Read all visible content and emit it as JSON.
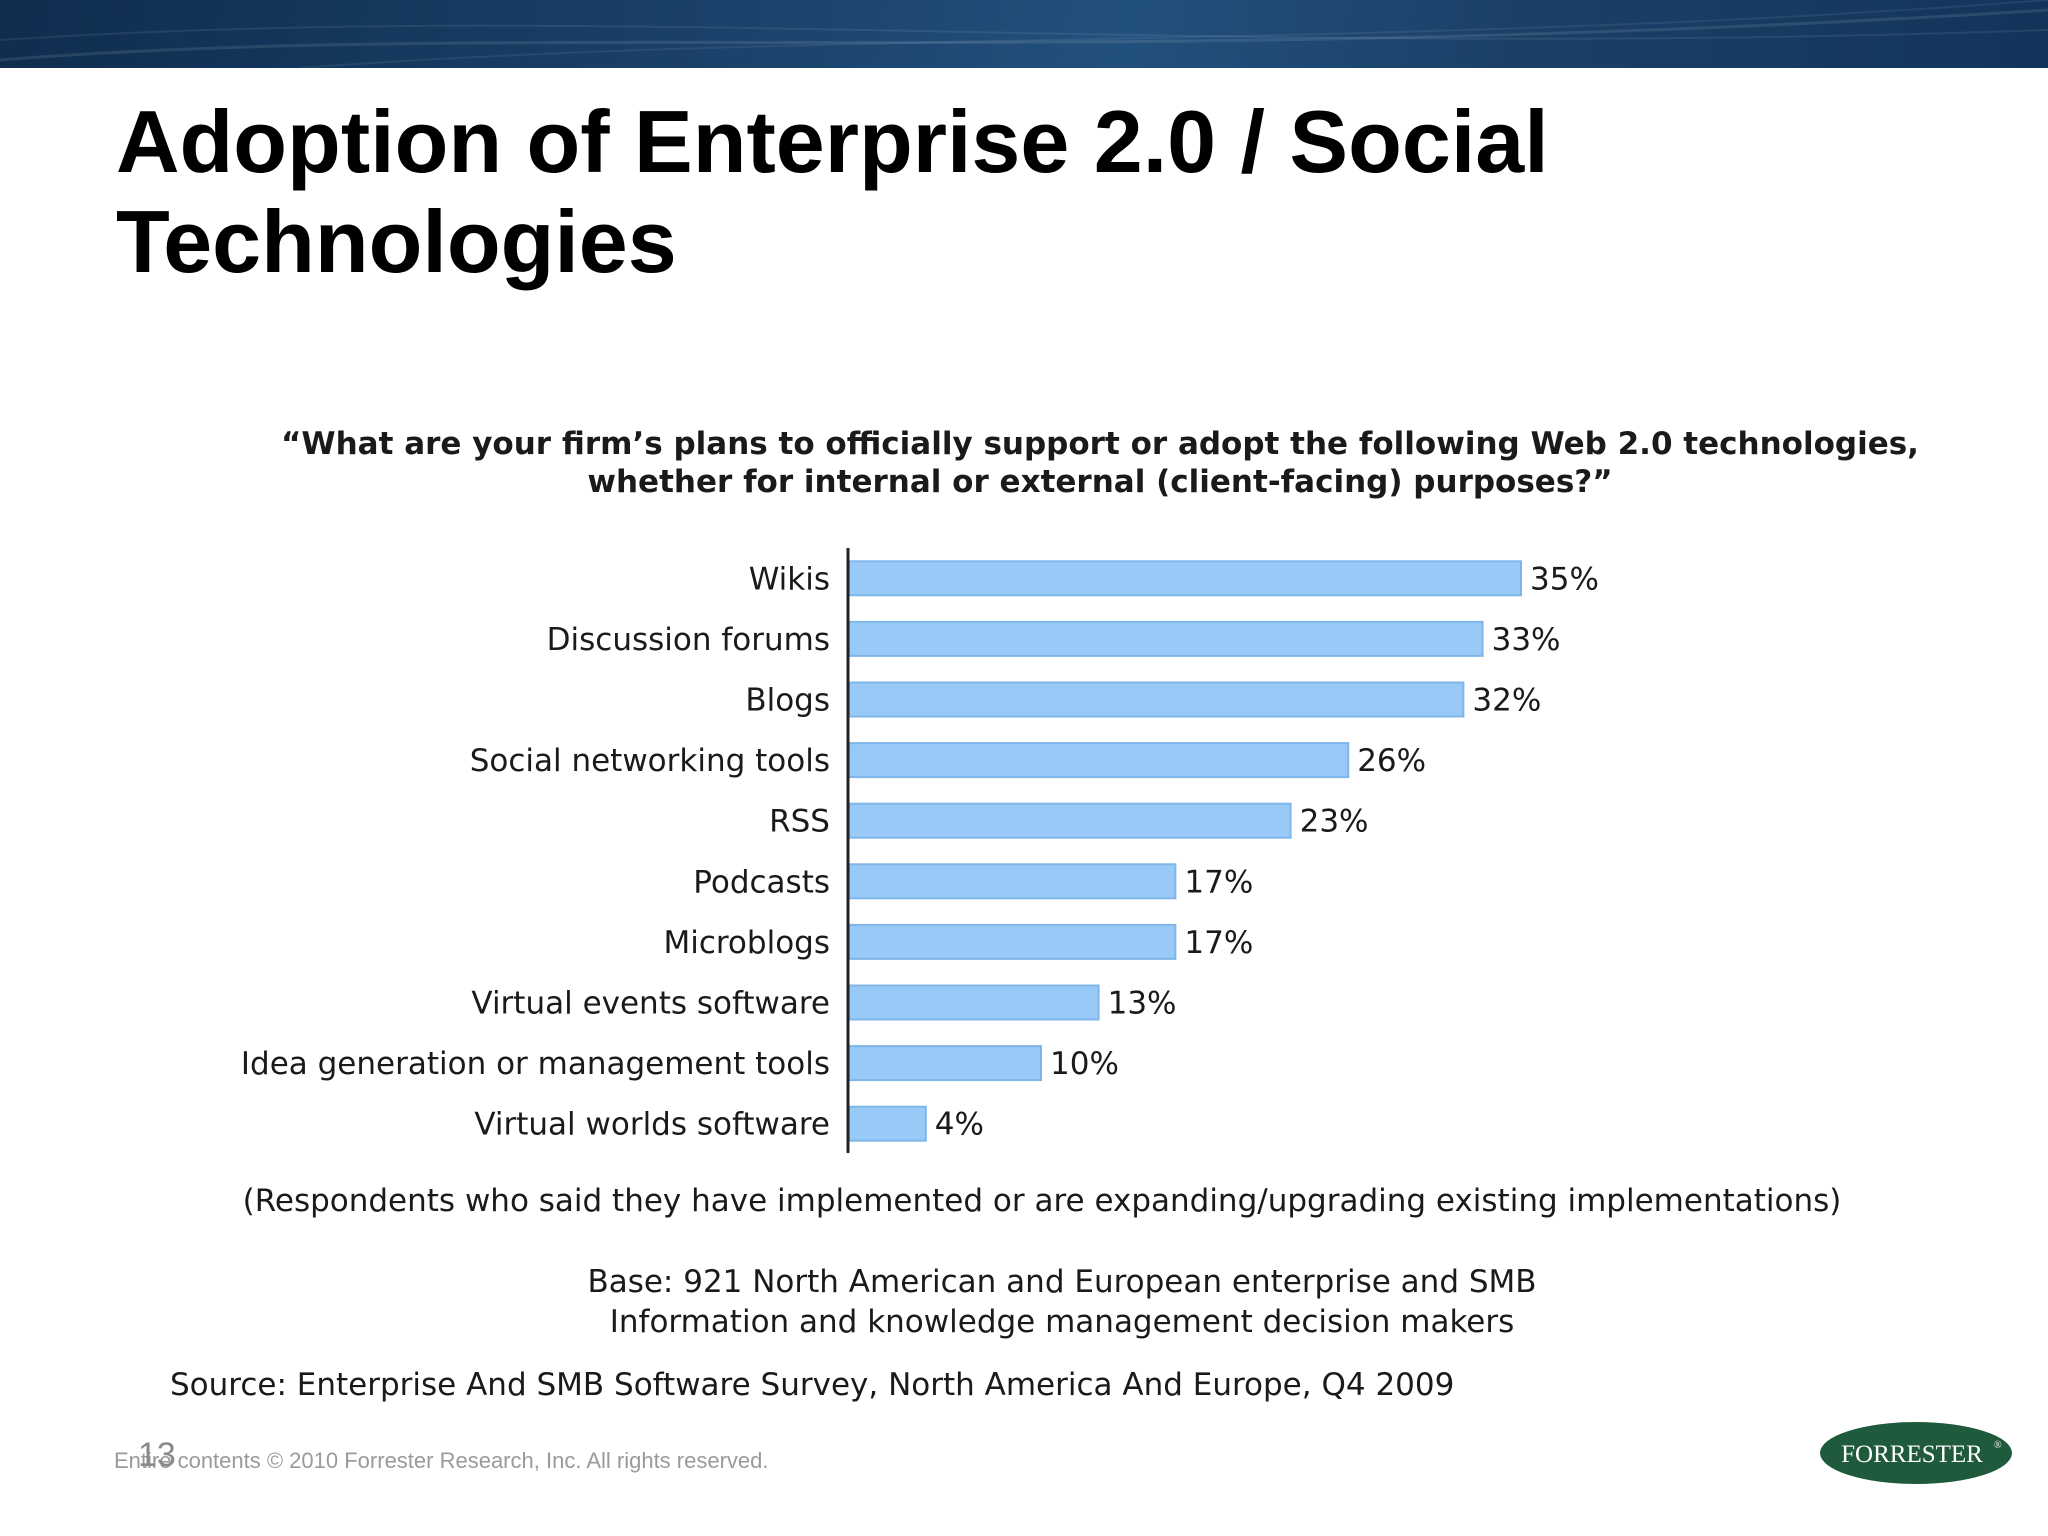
{
  "slide": {
    "title_line1": "Adoption of Enterprise 2.0 / Social",
    "title_line2": "Technologies",
    "page_number": "13",
    "copyright": "Entire contents © 2010  Forrester Research, Inc. All rights reserved.",
    "logo_text": "FORRESTER",
    "logo_mark": "®"
  },
  "colors": {
    "bar": "#99c9f7",
    "bar_edge": "#7fb6ea",
    "axis": "#222222",
    "text": "#1a1a1a",
    "logo_green": "#1f5a3c",
    "top_band": "#1a4169"
  },
  "chart_data": {
    "type": "bar",
    "orientation": "horizontal",
    "title_line1": "“What are your firm’s plans to officially support or adopt the following Web 2.0 technologies,",
    "title_line2": "whether for internal or external (client-facing) purposes?”",
    "categories": [
      "Wikis",
      "Discussion forums",
      "Blogs",
      "Social networking tools",
      "RSS",
      "Podcasts",
      "Microblogs",
      "Virtual events software",
      "Idea generation or management tools",
      "Virtual worlds software"
    ],
    "values": [
      35,
      33,
      32,
      26,
      23,
      17,
      17,
      13,
      10,
      4
    ],
    "value_labels": [
      "35%",
      "33%",
      "32%",
      "26%",
      "23%",
      "17%",
      "17%",
      "13%",
      "10%",
      "4%"
    ],
    "unit": "%",
    "xlim": [
      0,
      35
    ],
    "grid": false,
    "legend": "none",
    "note": "(Respondents who said they have implemented or are expanding/upgrading existing implementations)",
    "base_line1": "Base: 921 North American and European enterprise and SMB",
    "base_line2": "Information and knowledge management decision makers",
    "source": "Source: Enterprise And SMB Software Survey, North America And Europe, Q4 2009"
  }
}
